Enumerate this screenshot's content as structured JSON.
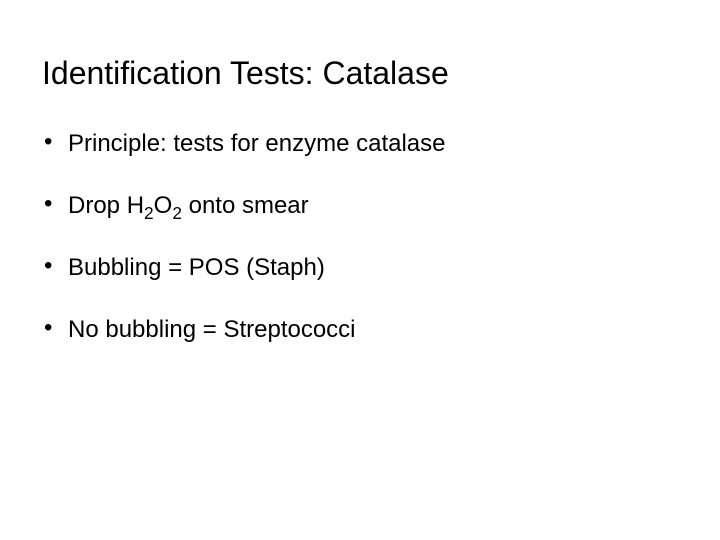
{
  "title": "Identification Tests: Catalase",
  "bullets": [
    {
      "text": "Principle:  tests for enzyme catalase",
      "hasFormula": false
    },
    {
      "prefix": "Drop H",
      "s1": "2",
      "mid": "O",
      "s2": "2",
      "suffix": " onto smear",
      "hasFormula": true
    },
    {
      "text": "Bubbling = POS (Staph)",
      "hasFormula": false
    },
    {
      "text": "No bubbling = Streptococci",
      "hasFormula": false
    }
  ],
  "style": {
    "background": "#ffffff",
    "text_color": "#000000",
    "title_fontsize": 32,
    "bullet_fontsize": 24
  }
}
